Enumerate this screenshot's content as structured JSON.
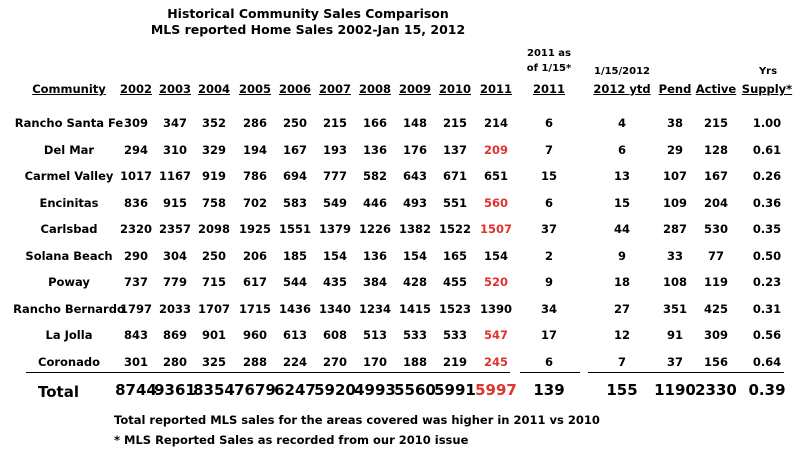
{
  "title": {
    "line1": "Historical Community Sales Comparison",
    "line2": "MLS reported Home Sales 2002-Jan 15, 2012"
  },
  "headers": {
    "community": "Community",
    "years": [
      "2002",
      "2003",
      "2004",
      "2005",
      "2006",
      "2007",
      "2008",
      "2009",
      "2010",
      "2011"
    ],
    "col2011_asof_line1": "2011 as",
    "col2011_asof_line2": "of 1/15*",
    "col2011_asof_line3": "2011",
    "ytd_line1": "1/15/2012",
    "ytd_line2": "2012 ytd",
    "pend": "Pend",
    "active": "Active",
    "supply_line1": "Yrs",
    "supply_line2": "Supply*"
  },
  "rows": [
    {
      "community": "Rancho Santa Fe",
      "years": [
        "309",
        "347",
        "352",
        "286",
        "250",
        "215",
        "166",
        "148",
        "215",
        "214"
      ],
      "red2011": false,
      "asof2011": "6",
      "ytd2012": "4",
      "pend": "38",
      "active": "215",
      "supply": "1.00"
    },
    {
      "community": "Del Mar",
      "years": [
        "294",
        "310",
        "329",
        "194",
        "167",
        "193",
        "136",
        "176",
        "137",
        "209"
      ],
      "red2011": true,
      "asof2011": "7",
      "ytd2012": "6",
      "pend": "29",
      "active": "128",
      "supply": "0.61"
    },
    {
      "community": "Carmel Valley",
      "years": [
        "1017",
        "1167",
        "919",
        "786",
        "694",
        "777",
        "582",
        "643",
        "671",
        "651"
      ],
      "red2011": false,
      "asof2011": "15",
      "ytd2012": "13",
      "pend": "107",
      "active": "167",
      "supply": "0.26"
    },
    {
      "community": "Encinitas",
      "years": [
        "836",
        "915",
        "758",
        "702",
        "583",
        "549",
        "446",
        "493",
        "551",
        "560"
      ],
      "red2011": true,
      "asof2011": "6",
      "ytd2012": "15",
      "pend": "109",
      "active": "204",
      "supply": "0.36"
    },
    {
      "community": "Carlsbad",
      "years": [
        "2320",
        "2357",
        "2098",
        "1925",
        "1551",
        "1379",
        "1226",
        "1382",
        "1522",
        "1507"
      ],
      "red2011": true,
      "asof2011": "37",
      "ytd2012": "44",
      "pend": "287",
      "active": "530",
      "supply": "0.35"
    },
    {
      "community": "Solana Beach",
      "years": [
        "290",
        "304",
        "250",
        "206",
        "185",
        "154",
        "136",
        "154",
        "165",
        "154"
      ],
      "red2011": false,
      "asof2011": "2",
      "ytd2012": "9",
      "pend": "33",
      "active": "77",
      "supply": "0.50"
    },
    {
      "community": "Poway",
      "years": [
        "737",
        "779",
        "715",
        "617",
        "544",
        "435",
        "384",
        "428",
        "455",
        "520"
      ],
      "red2011": true,
      "asof2011": "9",
      "ytd2012": "18",
      "pend": "108",
      "active": "119",
      "supply": "0.23"
    },
    {
      "community": "Rancho Bernardo",
      "years": [
        "1797",
        "2033",
        "1707",
        "1715",
        "1436",
        "1340",
        "1234",
        "1415",
        "1523",
        "1390"
      ],
      "red2011": false,
      "asof2011": "34",
      "ytd2012": "27",
      "pend": "351",
      "active": "425",
      "supply": "0.31"
    },
    {
      "community": "La Jolla",
      "years": [
        "843",
        "869",
        "901",
        "960",
        "613",
        "608",
        "513",
        "533",
        "533",
        "547"
      ],
      "red2011": true,
      "asof2011": "17",
      "ytd2012": "12",
      "pend": "91",
      "active": "309",
      "supply": "0.56"
    },
    {
      "community": "Coronado",
      "years": [
        "301",
        "280",
        "325",
        "288",
        "224",
        "270",
        "170",
        "188",
        "219",
        "245"
      ],
      "red2011": true,
      "asof2011": "6",
      "ytd2012": "7",
      "pend": "37",
      "active": "156",
      "supply": "0.64"
    }
  ],
  "total": {
    "label": "Total",
    "years": [
      "8744",
      "9361",
      "8354",
      "7679",
      "6247",
      "5920",
      "4993",
      "5560",
      "5991",
      "5997"
    ],
    "asof2011": "139",
    "ytd2012": "155",
    "pend": "1190",
    "active": "2330",
    "supply": "0.39"
  },
  "notes": {
    "line1": "Total reported MLS sales for the areas covered was higher in 2011 vs 2010",
    "line2": "* MLS Reported Sales as recorded from our 2010 issue"
  },
  "colors": {
    "highlight": "#e0322e",
    "text": "#000000",
    "background": "#ffffff"
  }
}
